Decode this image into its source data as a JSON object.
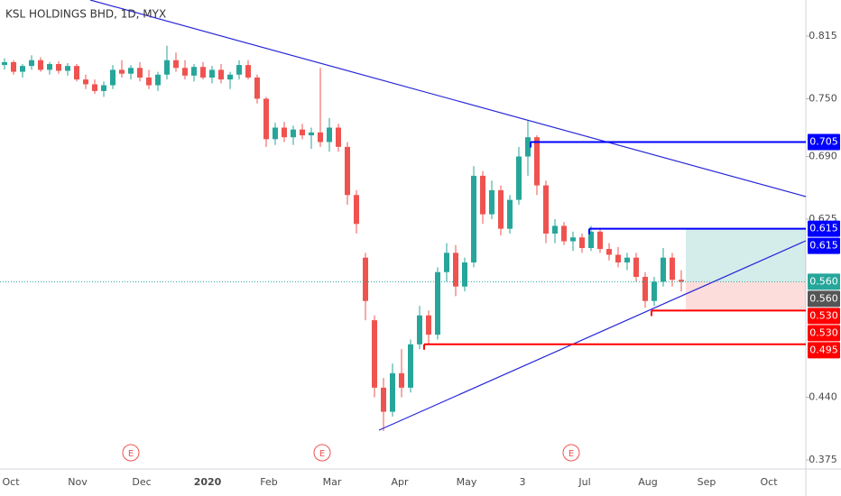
{
  "chart_data": {
    "type": "candlestick",
    "title": "KSL HOLDINGS BHD, 1D, MYX",
    "up_color": "#26a69a",
    "down_color": "#ef5350",
    "grid": false,
    "ylim": [
      0.3656,
      0.8525
    ],
    "yticks": [
      0.815,
      {
        "value": 0.75,
        "label": "0.750"
      },
      {
        "value": 0.69,
        "label": "0.690"
      },
      0.625,
      {
        "value": 0.44,
        "label": "0.440"
      },
      0.375
    ],
    "x_labels": [
      "Oct",
      "Nov",
      "Dec",
      "2020",
      "Feb",
      "Mar",
      "Apr",
      "May",
      "3",
      "Jul",
      "Aug",
      "Sep",
      "Oct"
    ],
    "events": [
      "E",
      "E",
      "E"
    ],
    "candles": [
      [
        0.785,
        0.792,
        0.78,
        0.788
      ],
      [
        0.788,
        0.79,
        0.775,
        0.778
      ],
      [
        0.778,
        0.786,
        0.772,
        0.784
      ],
      [
        0.784,
        0.795,
        0.78,
        0.79
      ],
      [
        0.79,
        0.793,
        0.778,
        0.78
      ],
      [
        0.78,
        0.788,
        0.775,
        0.786
      ],
      [
        0.786,
        0.789,
        0.776,
        0.779
      ],
      [
        0.779,
        0.787,
        0.774,
        0.784
      ],
      [
        0.784,
        0.786,
        0.768,
        0.77
      ],
      [
        0.77,
        0.775,
        0.76,
        0.765
      ],
      [
        0.765,
        0.77,
        0.755,
        0.758
      ],
      [
        0.758,
        0.768,
        0.752,
        0.764
      ],
      [
        0.764,
        0.785,
        0.76,
        0.78
      ],
      [
        0.78,
        0.79,
        0.772,
        0.776
      ],
      [
        0.776,
        0.785,
        0.77,
        0.782
      ],
      [
        0.782,
        0.788,
        0.768,
        0.772
      ],
      [
        0.772,
        0.78,
        0.76,
        0.764
      ],
      [
        0.764,
        0.778,
        0.758,
        0.775
      ],
      [
        0.775,
        0.805,
        0.77,
        0.79
      ],
      [
        0.79,
        0.798,
        0.778,
        0.782
      ],
      [
        0.782,
        0.79,
        0.77,
        0.774
      ],
      [
        0.774,
        0.786,
        0.768,
        0.783
      ],
      [
        0.783,
        0.788,
        0.77,
        0.772
      ],
      [
        0.772,
        0.784,
        0.766,
        0.78
      ],
      [
        0.78,
        0.786,
        0.766,
        0.77
      ],
      [
        0.77,
        0.778,
        0.76,
        0.775
      ],
      [
        0.775,
        0.79,
        0.77,
        0.785
      ],
      [
        0.785,
        0.79,
        0.77,
        0.772
      ],
      [
        0.772,
        0.775,
        0.745,
        0.75
      ],
      [
        0.75,
        0.752,
        0.7,
        0.708
      ],
      [
        0.708,
        0.725,
        0.702,
        0.72
      ],
      [
        0.72,
        0.726,
        0.705,
        0.71
      ],
      [
        0.71,
        0.722,
        0.702,
        0.718
      ],
      [
        0.718,
        0.724,
        0.708,
        0.712
      ],
      [
        0.712,
        0.72,
        0.698,
        0.715
      ],
      [
        0.715,
        0.782,
        0.7,
        0.705
      ],
      [
        0.705,
        0.73,
        0.695,
        0.72
      ],
      [
        0.72,
        0.724,
        0.695,
        0.7
      ],
      [
        0.7,
        0.705,
        0.64,
        0.65
      ],
      [
        0.65,
        0.655,
        0.61,
        0.62
      ],
      [
        0.585,
        0.59,
        0.52,
        0.54
      ],
      [
        0.52,
        0.525,
        0.44,
        0.45
      ],
      [
        0.45,
        0.46,
        0.405,
        0.425
      ],
      [
        0.425,
        0.475,
        0.42,
        0.465
      ],
      [
        0.465,
        0.49,
        0.44,
        0.45
      ],
      [
        0.45,
        0.5,
        0.445,
        0.495
      ],
      [
        0.495,
        0.535,
        0.49,
        0.525
      ],
      [
        0.525,
        0.53,
        0.495,
        0.505
      ],
      [
        0.505,
        0.575,
        0.5,
        0.57
      ],
      [
        0.57,
        0.6,
        0.56,
        0.59
      ],
      [
        0.59,
        0.598,
        0.545,
        0.555
      ],
      [
        0.555,
        0.585,
        0.55,
        0.58
      ],
      [
        0.58,
        0.68,
        0.575,
        0.67
      ],
      [
        0.67,
        0.675,
        0.62,
        0.63
      ],
      [
        0.63,
        0.665,
        0.625,
        0.655
      ],
      [
        0.655,
        0.66,
        0.608,
        0.615
      ],
      [
        0.615,
        0.65,
        0.61,
        0.645
      ],
      [
        0.645,
        0.7,
        0.64,
        0.69
      ],
      [
        0.69,
        0.728,
        0.67,
        0.71
      ],
      [
        0.71,
        0.712,
        0.65,
        0.66
      ],
      [
        0.66,
        0.665,
        0.6,
        0.61
      ],
      [
        0.61,
        0.625,
        0.6,
        0.618
      ],
      [
        0.618,
        0.622,
        0.598,
        0.602
      ],
      [
        0.602,
        0.612,
        0.592,
        0.606
      ],
      [
        0.606,
        0.61,
        0.59,
        0.595
      ],
      [
        0.595,
        0.618,
        0.592,
        0.612
      ],
      [
        0.612,
        0.615,
        0.59,
        0.594
      ],
      [
        0.594,
        0.6,
        0.582,
        0.588
      ],
      [
        0.588,
        0.596,
        0.575,
        0.58
      ],
      [
        0.58,
        0.59,
        0.572,
        0.585
      ],
      [
        0.585,
        0.59,
        0.56,
        0.565
      ],
      [
        0.565,
        0.57,
        0.533,
        0.54
      ],
      [
        0.54,
        0.565,
        0.535,
        0.56
      ],
      [
        0.56,
        0.595,
        0.555,
        0.585
      ],
      [
        0.585,
        0.59,
        0.555,
        0.562
      ],
      [
        0.562,
        0.572,
        0.55,
        0.56
      ]
    ],
    "price_labels": [
      {
        "value": 0.705,
        "label": "0.705",
        "color": "#0000ff"
      },
      {
        "value": 0.615,
        "label": "0.615",
        "color": "#0000ff"
      },
      {
        "value": 0.615,
        "label": "0.615",
        "color": "#0000ff"
      },
      {
        "value": 0.56,
        "label": "0.560",
        "color": "#26a69a"
      },
      {
        "value": 0.56,
        "label": "0.560",
        "color": "#555555"
      },
      {
        "value": 0.53,
        "label": "0.530",
        "color": "#ff0000"
      },
      {
        "value": 0.53,
        "label": "0.530",
        "color": "#ff0000"
      },
      {
        "value": 0.495,
        "label": "0.495",
        "color": "#ff0000"
      }
    ]
  }
}
